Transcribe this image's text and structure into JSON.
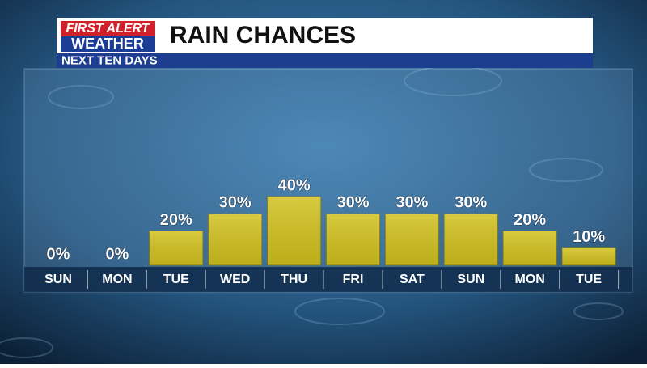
{
  "logo": {
    "line1": "FIRST ALERT",
    "line2": "WEATHER"
  },
  "chart_data": {
    "type": "bar",
    "title": "RAIN CHANCES",
    "subtitle": "NEXT TEN DAYS",
    "categories": [
      "SUN",
      "MON",
      "TUE",
      "WED",
      "THU",
      "FRI",
      "SAT",
      "SUN",
      "MON",
      "TUE"
    ],
    "values": [
      0,
      0,
      20,
      30,
      40,
      30,
      30,
      30,
      20,
      10
    ],
    "value_labels": [
      "0%",
      "0%",
      "20%",
      "30%",
      "40%",
      "30%",
      "30%",
      "30%",
      "20%",
      "10%"
    ],
    "color": "#d2c21e"
  }
}
